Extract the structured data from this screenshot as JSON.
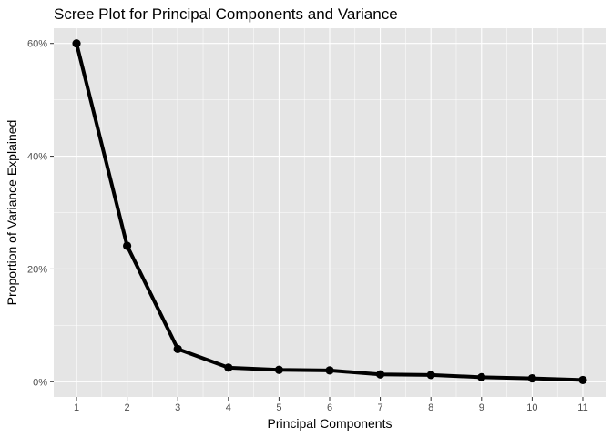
{
  "chart_data": {
    "type": "line",
    "title": "Scree Plot for Principal Components and Variance",
    "xlabel": "Principal Components",
    "ylabel": "Proportion of Variance Explained",
    "x": [
      1,
      2,
      3,
      4,
      5,
      6,
      7,
      8,
      9,
      10,
      11
    ],
    "values": [
      0.6,
      0.241,
      0.058,
      0.025,
      0.021,
      0.02,
      0.013,
      0.012,
      0.008,
      0.006,
      0.003
    ],
    "x_ticks": [
      "1",
      "2",
      "3",
      "4",
      "5",
      "6",
      "7",
      "8",
      "9",
      "10",
      "11"
    ],
    "y_ticks": [
      {
        "value": 0,
        "label": "0%"
      },
      {
        "value": 0.2,
        "label": "20%"
      },
      {
        "value": 0.4,
        "label": "40%"
      },
      {
        "value": 0.6,
        "label": "60%"
      }
    ],
    "xlim": [
      0.55,
      11.45
    ],
    "ylim": [
      -0.027,
      0.627
    ],
    "grid": true,
    "colors": {
      "panel": "#e5e5e5",
      "grid": "#ffffff",
      "line": "#000000",
      "tick": "#4d4d4d"
    }
  }
}
